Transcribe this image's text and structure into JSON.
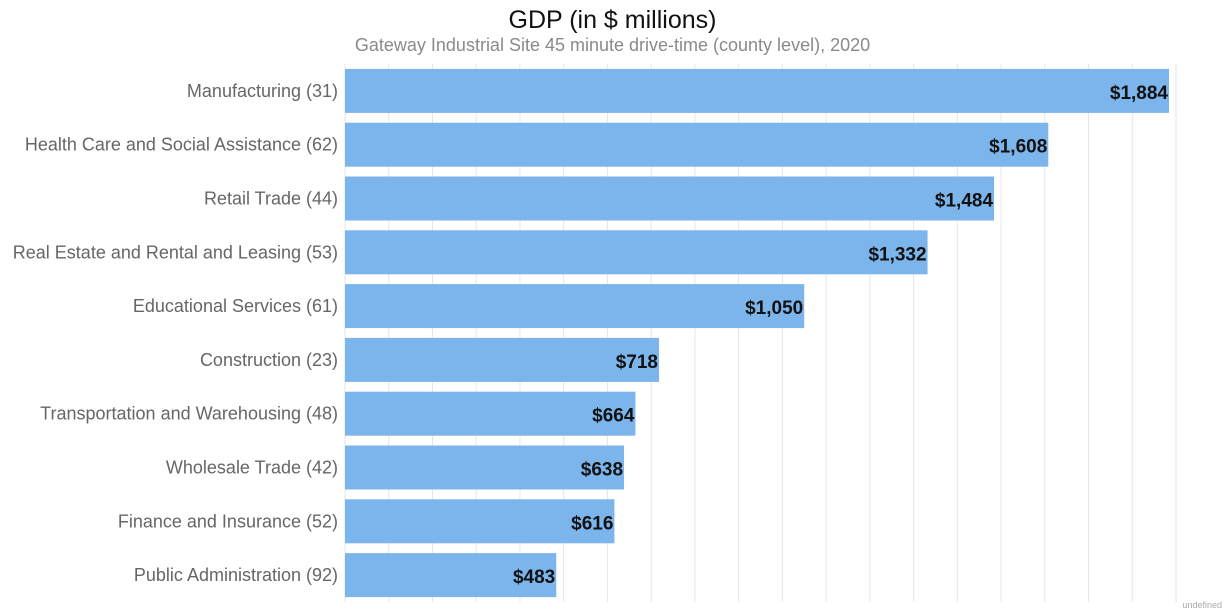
{
  "colors": {
    "bar": "#7cb5ec",
    "grid": "#e6e6e6",
    "label": "#666666",
    "value": "#111111"
  },
  "chart_data": {
    "type": "bar",
    "orientation": "horizontal",
    "title": "GDP (in $ millions)",
    "subtitle": "Gateway Industrial Site 45 minute drive-time (county level), 2020",
    "categories": [
      "Manufacturing (31)",
      "Health Care and Social Assistance (62)",
      "Retail Trade (44)",
      "Real Estate and Rental and Leasing (53)",
      "Educational Services (61)",
      "Construction (23)",
      "Transportation and Warehousing (48)",
      "Wholesale Trade (42)",
      "Finance and Insurance (52)",
      "Public Administration (92)"
    ],
    "values": [
      1884,
      1608,
      1484,
      1332,
      1050,
      718,
      664,
      638,
      616,
      483
    ],
    "value_labels": [
      "$1,884",
      "$1,608",
      "$1,484",
      "$1,332",
      "$1,050",
      "$718",
      "$664",
      "$638",
      "$616",
      "$483"
    ],
    "xlim": [
      0,
      1900
    ],
    "grid": true,
    "legend": "none"
  },
  "footer_note": "undefined"
}
